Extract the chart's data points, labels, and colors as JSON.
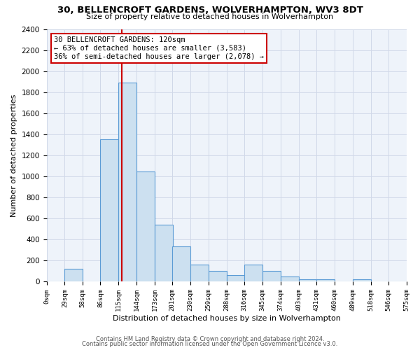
{
  "title": "30, BELLENCROFT GARDENS, WOLVERHAMPTON, WV3 8DT",
  "subtitle": "Size of property relative to detached houses in Wolverhampton",
  "xlabel": "Distribution of detached houses by size in Wolverhampton",
  "ylabel": "Number of detached properties",
  "bin_edges": [
    0,
    29,
    58,
    86,
    115,
    144,
    173,
    201,
    230,
    259,
    288,
    316,
    345,
    374,
    403,
    431,
    460,
    489,
    518,
    546,
    575
  ],
  "bin_labels": [
    "0sqm",
    "29sqm",
    "58sqm",
    "86sqm",
    "115sqm",
    "144sqm",
    "173sqm",
    "201sqm",
    "230sqm",
    "259sqm",
    "288sqm",
    "316sqm",
    "345sqm",
    "374sqm",
    "403sqm",
    "431sqm",
    "460sqm",
    "489sqm",
    "518sqm",
    "546sqm",
    "575sqm"
  ],
  "counts": [
    0,
    125,
    0,
    1350,
    1890,
    1050,
    545,
    335,
    160,
    105,
    60,
    165,
    100,
    50,
    25,
    25,
    0,
    20,
    0,
    0,
    15
  ],
  "bar_color": "#cce0f0",
  "bar_edge_color": "#5b9bd5",
  "reference_line_x": 120,
  "reference_line_color": "#cc0000",
  "annotation_title": "30 BELLENCROFT GARDENS: 120sqm",
  "annotation_line1": "← 63% of detached houses are smaller (3,583)",
  "annotation_line2": "36% of semi-detached houses are larger (2,078) →",
  "annotation_box_color": "#ffffff",
  "annotation_box_edge": "#cc0000",
  "ylim": [
    0,
    2400
  ],
  "yticks": [
    0,
    200,
    400,
    600,
    800,
    1000,
    1200,
    1400,
    1600,
    1800,
    2000,
    2200,
    2400
  ],
  "footer1": "Contains HM Land Registry data © Crown copyright and database right 2024.",
  "footer2": "Contains public sector information licensed under the Open Government Licence v3.0.",
  "background_color": "#ffffff",
  "grid_color": "#d0d8e8",
  "plot_bg_color": "#eef3fa"
}
